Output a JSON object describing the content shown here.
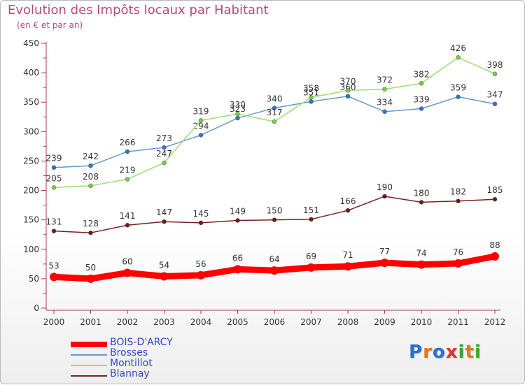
{
  "title": "Evolution des Impôts locaux par Habitant",
  "subtitle": "(en € et par an)",
  "logo": {
    "text": "Proxiti",
    "colors": [
      "#2a6fd1",
      "#e07a1a",
      "#2a6fd1",
      "#d43a2a",
      "#3aa82a",
      "#e07a1a",
      "#3aa82a"
    ]
  },
  "chart_data": {
    "type": "line",
    "title": "Evolution des Impôts locaux par Habitant",
    "subtitle": "(en € et par an)",
    "xlabel": "",
    "ylabel": "",
    "x": [
      "2000",
      "2001",
      "2002",
      "2003",
      "2004",
      "2005",
      "2006",
      "2007",
      "2008",
      "2009",
      "2010",
      "2011",
      "2012"
    ],
    "ylim": [
      0,
      450
    ],
    "yticks": [
      0,
      50,
      100,
      150,
      200,
      250,
      300,
      350,
      400,
      450
    ],
    "grid": false,
    "legend_position": "bottom-left",
    "series": [
      {
        "name": "BOIS-D'ARCY",
        "color": "#ff0000",
        "values": [
          53,
          50,
          60,
          54,
          56,
          66,
          64,
          69,
          71,
          77,
          74,
          76,
          88
        ]
      },
      {
        "name": "Brosses",
        "color": "#6699cc",
        "marker": "#3377bb",
        "values": [
          239,
          242,
          266,
          273,
          294,
          323,
          340,
          351,
          360,
          334,
          339,
          359,
          347
        ]
      },
      {
        "name": "Montillot",
        "color": "#99dd77",
        "marker": "#77cc44",
        "values": [
          205,
          208,
          219,
          247,
          319,
          330,
          317,
          358,
          370,
          372,
          382,
          426,
          398
        ]
      },
      {
        "name": "Blannay",
        "color": "#772222",
        "marker": "#662020",
        "values": [
          131,
          128,
          141,
          147,
          145,
          149,
          150,
          151,
          166,
          190,
          180,
          182,
          185
        ]
      }
    ]
  }
}
